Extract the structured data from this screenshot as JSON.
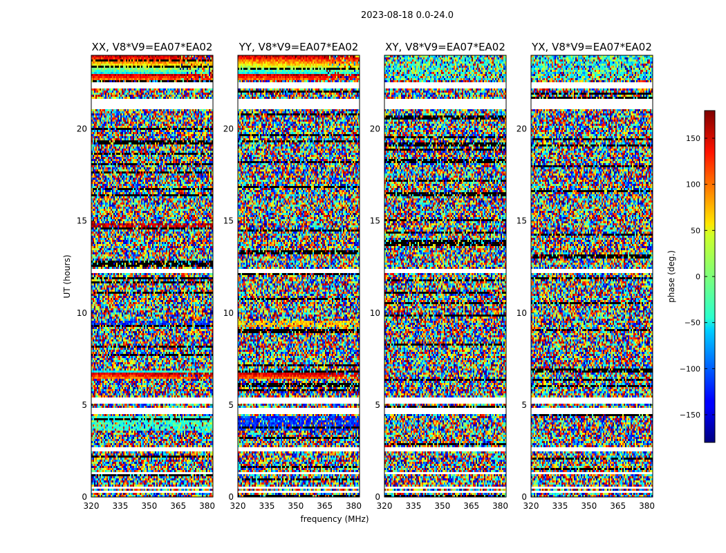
{
  "figure_title": "2023-08-18 0.0-24.0",
  "chart_data": {
    "type": "heatmap",
    "description_units": "phase in degrees vs frequency (MHz) and UT (hours)",
    "xlabel": "frequency (MHz)",
    "ylabel": "UT (hours)",
    "xlim": [
      320,
      383
    ],
    "ylim": [
      0,
      24
    ],
    "xticks": [
      320,
      335,
      350,
      365,
      380
    ],
    "yticks": [
      0,
      5,
      10,
      15,
      20
    ],
    "colorbar": {
      "label": "phase (deg.)",
      "range": [
        -180,
        180
      ],
      "ticks": [
        150,
        100,
        50,
        0,
        -50,
        -100,
        -150
      ],
      "tick_labels": [
        "150",
        "100",
        "50",
        "0",
        "−50",
        "−100",
        "−150"
      ],
      "colormap": "jet"
    },
    "panels": [
      {
        "title": "XX, V8*V9=EA07*EA02",
        "coherent_bands": [
          [
            22.6,
            24,
            "strong"
          ],
          [
            14.6,
            14.9,
            "red"
          ],
          [
            6.4,
            6.9,
            "strong"
          ],
          [
            3.6,
            4.4,
            "cyan"
          ],
          [
            9.4,
            9.6,
            "blue"
          ]
        ]
      },
      {
        "title": "YY, V8*V9=EA07*EA02",
        "coherent_bands": [
          [
            22.6,
            24,
            "strong"
          ],
          [
            6.4,
            6.9,
            "strong"
          ],
          [
            3.6,
            4.4,
            "blue"
          ],
          [
            9.2,
            9.6,
            "yellow"
          ]
        ]
      },
      {
        "title": "XY, V8*V9=EA07*EA02",
        "coherent_bands": [
          [
            22.6,
            24,
            "weak"
          ]
        ]
      },
      {
        "title": "YX, V8*V9=EA07*EA02",
        "coherent_bands": [
          [
            22.6,
            24,
            "weak"
          ]
        ]
      }
    ],
    "gaps_hours": [
      [
        0.25,
        0.35
      ],
      [
        0.45,
        0.52
      ],
      [
        1.2,
        1.4
      ],
      [
        2.5,
        2.65
      ],
      [
        4.5,
        4.8
      ],
      [
        5.05,
        5.4
      ],
      [
        12.15,
        12.35
      ],
      [
        15.05,
        15.15
      ],
      [
        21.1,
        21.6
      ],
      [
        22.15,
        22.3
      ],
      [
        22.35,
        22.55
      ]
    ]
  }
}
